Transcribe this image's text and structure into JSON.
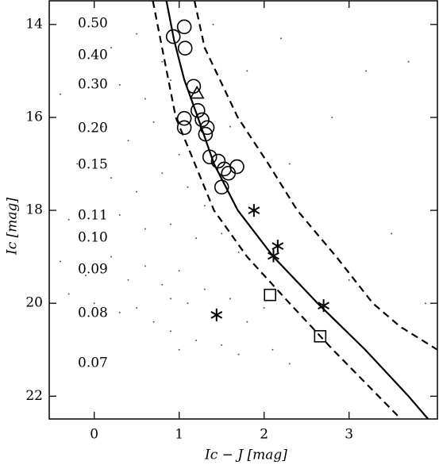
{
  "chart_data": {
    "type": "scatter",
    "xlabel": "Ic − J [mag]",
    "ylabel": "Ic [mag]",
    "xlim": [
      -0.53,
      4.04
    ],
    "ylim": [
      22.49,
      13.49
    ],
    "xticks": [
      0,
      1,
      2,
      3
    ],
    "yticks": [
      14,
      16,
      18,
      20,
      22
    ],
    "annotations": [
      "0.50",
      "0.40",
      "0.30",
      "0.20",
      "0.15",
      "0.11",
      "0.10",
      "0.09",
      "0.08",
      "0.07"
    ],
    "series": [
      {
        "name": "field",
        "color": "#555555",
        "marker": "dot",
        "x": [
          0.2,
          0.5,
          0.8,
          0.3,
          0.6,
          0.9,
          0.1,
          0.4,
          0.7,
          1.0,
          -0.2,
          0.2,
          0.5,
          0.8,
          1.1,
          1.3,
          -0.3,
          0.0,
          0.3,
          0.6,
          0.9,
          1.2,
          1.5,
          1.7,
          -0.4,
          -0.1,
          0.2,
          0.4,
          0.6,
          0.8,
          0.9,
          1.0,
          1.1,
          1.3,
          1.4,
          1.6,
          1.8,
          2.0,
          0.5,
          0.7,
          0.9,
          1.2,
          1.5,
          1.7,
          2.1,
          2.3,
          1.0,
          0.3,
          0.0,
          -0.3,
          1.9,
          2.3,
          2.8,
          3.2,
          3.5,
          3.0,
          2.6,
          1.6,
          1.8,
          2.2,
          3.7,
          3.9,
          1.4,
          -0.4
        ],
        "values": [
          14.5,
          14.2,
          14.8,
          15.3,
          15.6,
          15.2,
          16.2,
          16.5,
          16.1,
          16.8,
          17.0,
          17.3,
          17.6,
          17.2,
          17.5,
          17.9,
          18.2,
          18.5,
          18.1,
          18.4,
          18.3,
          18.6,
          18.5,
          18.9,
          19.1,
          19.4,
          19.0,
          19.5,
          19.2,
          19.6,
          19.9,
          19.3,
          20.0,
          19.7,
          20.3,
          19.9,
          20.4,
          20.1,
          20.1,
          20.4,
          20.6,
          20.8,
          20.9,
          21.1,
          21.0,
          21.3,
          21.0,
          20.2,
          20.0,
          19.8,
          18.0,
          17.0,
          16.0,
          15.0,
          18.5,
          19.5,
          20.6,
          16.2,
          15.0,
          14.3,
          14.8,
          20.0,
          14.0,
          15.5
        ]
      },
      {
        "name": "isochrone",
        "color": "#000000",
        "marker": "line",
        "dash": false,
        "x": [
          0.85,
          0.94,
          1.06,
          1.22,
          1.41,
          1.69,
          2.11,
          2.63,
          3.19,
          3.7,
          3.93
        ],
        "values": [
          13.49,
          14.34,
          15.19,
          16,
          17,
          18,
          19,
          20,
          21,
          22,
          22.49
        ]
      },
      {
        "name": "upper",
        "color": "#000000",
        "marker": "line",
        "dash": true,
        "x": [
          1.18,
          1.3,
          1.69,
          2.05,
          2.39,
          2.85,
          3.28,
          3.6,
          4.04
        ],
        "values": [
          13.49,
          14.5,
          16,
          17,
          18,
          19,
          20,
          20.5,
          21.0
        ]
      },
      {
        "name": "lower",
        "color": "#000000",
        "marker": "line",
        "dash": true,
        "x": [
          0.69,
          0.96,
          1.41,
          1.8,
          2.3,
          2.81,
          3.61
        ],
        "values": [
          13.49,
          16,
          18,
          19,
          20,
          21,
          22.49
        ]
      },
      {
        "name": "circles",
        "color": "#000000",
        "marker": "circle",
        "x": [
          0.93,
          1.06,
          1.07,
          1.17,
          1.22,
          1.06,
          1.06,
          1.27,
          1.33,
          1.31,
          1.36,
          1.46,
          1.53,
          1.58,
          1.68,
          1.5
        ],
        "values": [
          14.26,
          14.05,
          14.51,
          15.33,
          15.85,
          16.02,
          16.22,
          16.05,
          16.22,
          16.36,
          16.85,
          16.94,
          17.11,
          17.2,
          17.06,
          17.5
        ]
      },
      {
        "name": "triangle",
        "color": "#000000",
        "marker": "triangle",
        "x": [
          1.21
        ],
        "values": [
          15.48
        ]
      },
      {
        "name": "stars",
        "color": "#000000",
        "marker": "star",
        "x": [
          1.88,
          2.16,
          2.11,
          2.7,
          1.44
        ],
        "values": [
          18.0,
          18.77,
          18.98,
          20.05,
          20.25
        ]
      },
      {
        "name": "squares",
        "color": "#000000",
        "marker": "square",
        "x": [
          2.07,
          2.66
        ],
        "values": [
          19.82,
          20.71
        ]
      }
    ]
  }
}
